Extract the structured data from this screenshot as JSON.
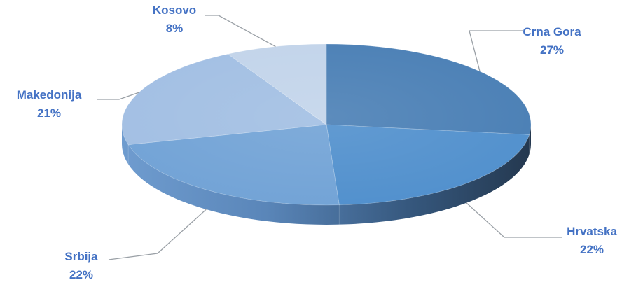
{
  "chart_data": {
    "type": "pie",
    "style": "3d",
    "categories": [
      "Crna Gora",
      "Hrvatska",
      "Srbija",
      "Makedonija",
      "Kosovo"
    ],
    "values": [
      27,
      22,
      22,
      21,
      8
    ],
    "value_labels": [
      "27%",
      "22%",
      "22%",
      "21%",
      "8%"
    ],
    "colors": [
      "#4a7fb5",
      "#5190cd",
      "#72a3d6",
      "#a2bfe3",
      "#c2d4ea"
    ],
    "label_color": "#4472c4",
    "leader_color": "#9aa0a6",
    "title": "",
    "legend": "none"
  }
}
